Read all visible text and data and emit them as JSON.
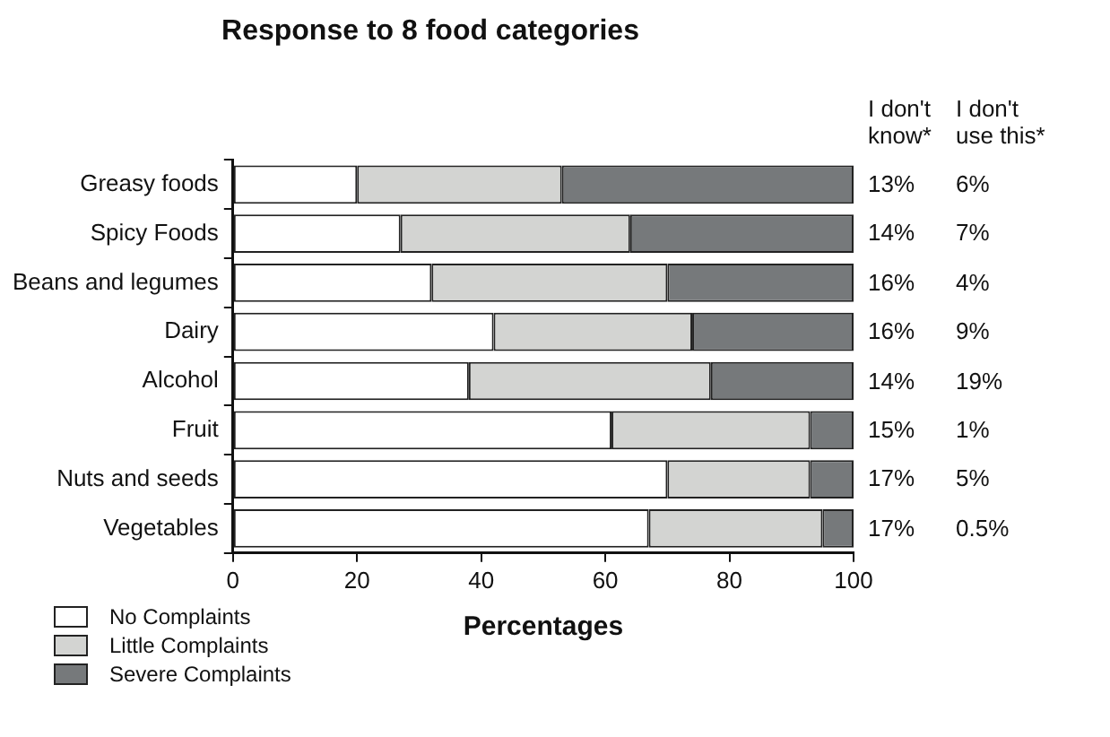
{
  "chart_data": {
    "type": "bar",
    "orientation": "horizontal",
    "stacked": true,
    "title": "Response to 8 food categories",
    "xlabel": "Percentages",
    "categories": [
      "Greasy foods",
      "Spicy Foods",
      "Beans and legumes",
      "Dairy",
      "Alcohol",
      "Fruit",
      "Nuts and seeds",
      "Vegetables"
    ],
    "series": [
      {
        "name": "No Complaints",
        "color": "#ffffff",
        "values": [
          20,
          27,
          32,
          42,
          38,
          61,
          70,
          67
        ]
      },
      {
        "name": "Little Complaints",
        "color": "#d3d4d2",
        "values": [
          33,
          37,
          38,
          32,
          39,
          32,
          23,
          28
        ]
      },
      {
        "name": "Severe Complaints",
        "color": "#76797b",
        "values": [
          47,
          36,
          30,
          26,
          23,
          7,
          7,
          5
        ]
      }
    ],
    "xlim": [
      0,
      100
    ],
    "xticks": [
      0,
      20,
      40,
      60,
      80,
      100
    ],
    "grid": false,
    "legend": "bottom left",
    "annotations": [
      "I don't know*",
      "I don't use this*",
      "13%",
      "6%",
      "14%",
      "7%",
      "16%",
      "4%",
      "16%",
      "9%",
      "14%",
      "19%",
      "15%",
      "1%",
      "17%",
      "5%",
      "17%",
      "0.5%"
    ]
  }
}
